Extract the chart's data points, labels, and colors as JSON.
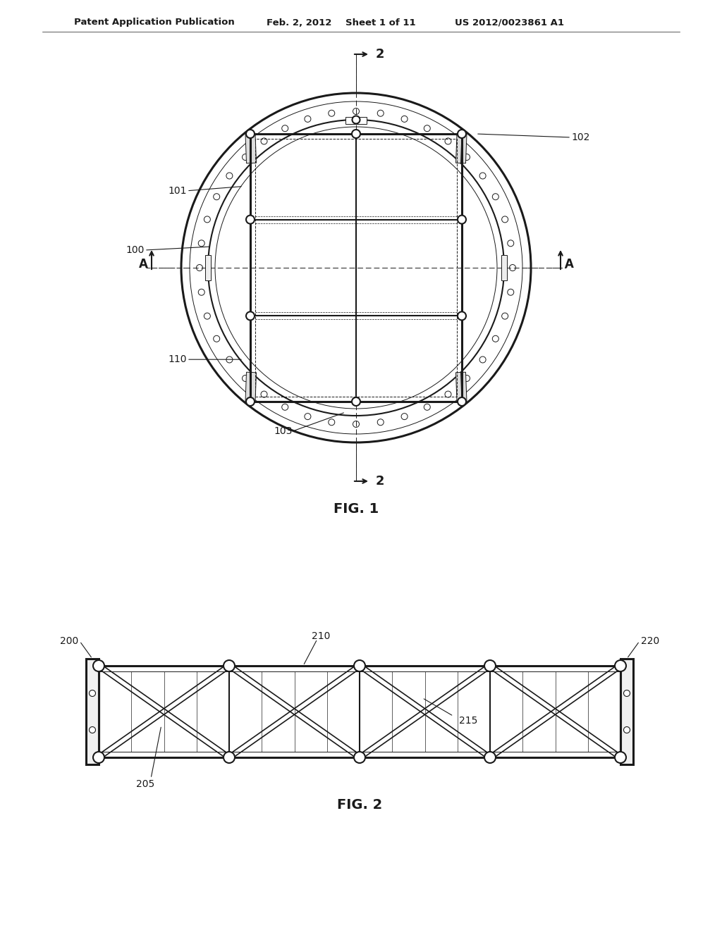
{
  "background_color": "#ffffff",
  "header_text": "Patent Application Publication",
  "header_date": "Feb. 2, 2012",
  "header_sheet": "Sheet 1 of 11",
  "header_patent": "US 2012/0023861 A1",
  "fig1_label": "FIG. 1",
  "fig2_label": "FIG. 2",
  "line_color": "#1a1a1a"
}
